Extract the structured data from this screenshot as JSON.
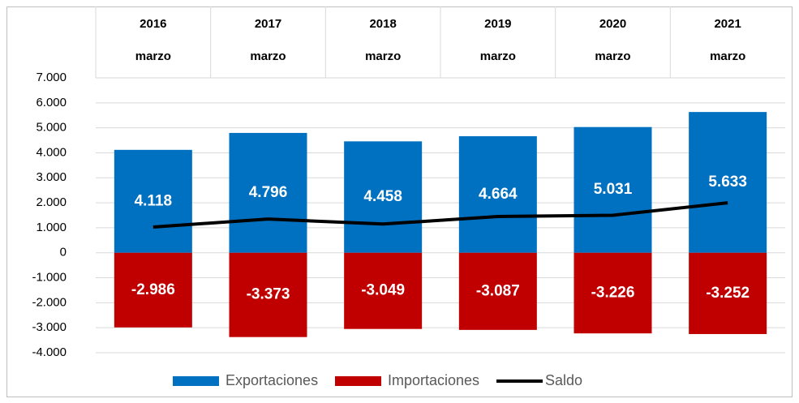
{
  "chart_data": {
    "type": "bar",
    "categories": [
      "2016",
      "2017",
      "2018",
      "2019",
      "2020",
      "2021"
    ],
    "subcategories": [
      "marzo",
      "marzo",
      "marzo",
      "marzo",
      "marzo",
      "marzo"
    ],
    "series": [
      {
        "name": "Exportaciones",
        "type": "bar",
        "color": "#0070c0",
        "values": [
          4118,
          4796,
          4458,
          4664,
          5031,
          5633
        ],
        "value_labels": [
          "4.118",
          "4.796",
          "4.458",
          "4.664",
          "5.031",
          "5.633"
        ]
      },
      {
        "name": "Importaciones",
        "type": "bar",
        "color": "#c00000",
        "values": [
          -2986,
          -3373,
          -3049,
          -3087,
          -3226,
          -3252
        ],
        "value_labels": [
          "-2.986",
          "-3.373",
          "-3.049",
          "-3.087",
          "-3.226",
          "-3.252"
        ]
      },
      {
        "name": "Saldo",
        "type": "line",
        "color": "#000000",
        "values": [
          1030,
          1350,
          1150,
          1450,
          1500,
          2000
        ]
      }
    ],
    "ylim": [
      -4000,
      7000
    ],
    "yticks": [
      {
        "value": 7000,
        "label": "7.000"
      },
      {
        "value": 6000,
        "label": "6.000"
      },
      {
        "value": 5000,
        "label": "5.000"
      },
      {
        "value": 4000,
        "label": "4.000"
      },
      {
        "value": 3000,
        "label": "3.000"
      },
      {
        "value": 2000,
        "label": "2.000"
      },
      {
        "value": 1000,
        "label": "1.000"
      },
      0,
      {
        "value": -1000,
        "label": "-1.000"
      },
      {
        "value": -2000,
        "label": "-2.000"
      },
      {
        "value": -3000,
        "label": "-3.000"
      },
      {
        "value": -4000,
        "label": "-4.000"
      }
    ],
    "grid": true,
    "legend": "bottom"
  }
}
